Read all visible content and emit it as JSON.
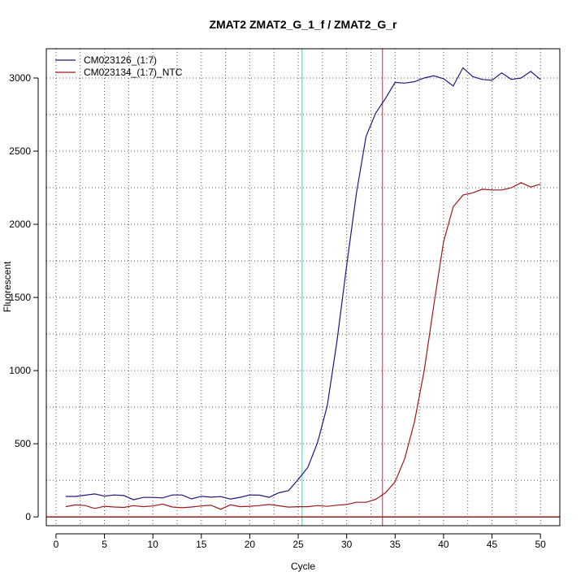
{
  "chart_data": {
    "type": "line",
    "title": "ZMAT2  ZMAT2_G_1_f / ZMAT2_G_r",
    "xlabel": "Cycle",
    "ylabel": "Fluorescent",
    "xlim": [
      -1,
      52
    ],
    "ylim": [
      -60,
      3200
    ],
    "xticks": [
      0,
      5,
      10,
      15,
      20,
      25,
      30,
      35,
      40,
      45,
      50
    ],
    "yticks": [
      0,
      500,
      1000,
      1500,
      2000,
      2500,
      3000
    ],
    "x_minor_grid": [
      2.5,
      7.5,
      12.5,
      17.5,
      22.5,
      27.5,
      32.5,
      37.5,
      42.5,
      47.5
    ],
    "y_minor_grid": [
      250,
      750,
      1250,
      1750,
      2250,
      2750
    ],
    "grid": "dotted",
    "legend_position": "top-left",
    "threshold_y": 0,
    "vertical_lines": [
      {
        "x": 25.4,
        "color": "#00e5e5"
      },
      {
        "x": 33.7,
        "color": "#a0404a"
      }
    ],
    "x": [
      1,
      2,
      3,
      4,
      5,
      6,
      7,
      8,
      9,
      10,
      11,
      12,
      13,
      14,
      15,
      16,
      17,
      18,
      19,
      20,
      21,
      22,
      23,
      24,
      25,
      26,
      27,
      28,
      29,
      30,
      31,
      32,
      33,
      34,
      35,
      36,
      37,
      38,
      39,
      40,
      41,
      42,
      43,
      44,
      45,
      46,
      47,
      48,
      49,
      50
    ],
    "series": [
      {
        "name": "CM023126_(1:7)",
        "color": "#1a1a80",
        "values": [
          140,
          140,
          148,
          157,
          142,
          150,
          146,
          117,
          133,
          133,
          130,
          150,
          150,
          123,
          141,
          135,
          139,
          122,
          134,
          150,
          149,
          134,
          165,
          180,
          256,
          340,
          510,
          760,
          1200,
          1720,
          2210,
          2600,
          2760,
          2860,
          2970,
          2965,
          2975,
          3000,
          3015,
          2995,
          2945,
          3070,
          3010,
          2990,
          2985,
          3035,
          2990,
          3000,
          3045,
          2990
        ]
      },
      {
        "name": "CM023134_(1:7)_NTC",
        "color": "#9b1a1a",
        "values": [
          70,
          82,
          78,
          58,
          73,
          68,
          65,
          77,
          70,
          75,
          88,
          68,
          63,
          68,
          75,
          80,
          52,
          83,
          70,
          73,
          78,
          85,
          76,
          67,
          70,
          70,
          78,
          72,
          80,
          85,
          100,
          100,
          120,
          165,
          240,
          400,
          650,
          1000,
          1450,
          1880,
          2120,
          2200,
          2215,
          2240,
          2235,
          2235,
          2250,
          2285,
          2255,
          2275
        ]
      }
    ]
  }
}
